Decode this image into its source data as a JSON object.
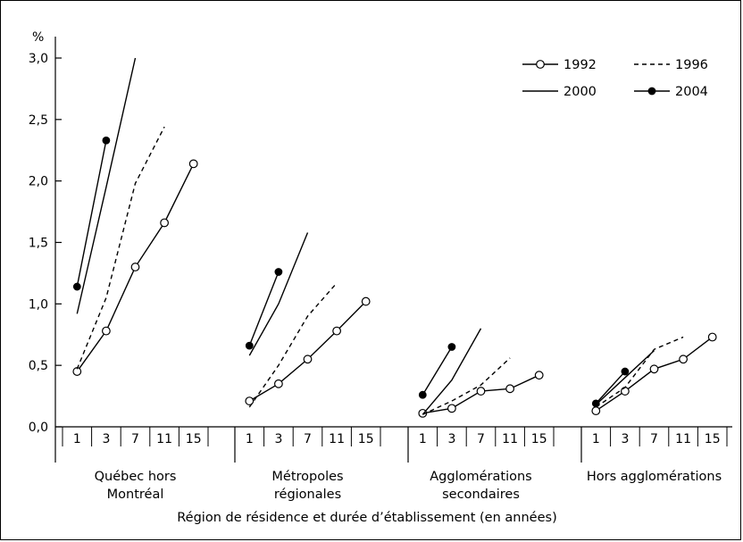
{
  "chart_data": {
    "type": "line",
    "ylabel": "%",
    "xlabel": "Région de résidence et durée d’établissement (en années)",
    "ylim": [
      0,
      3.0
    ],
    "y_ticks": [
      "0,0",
      "0,5",
      "1,0",
      "1,5",
      "2,0",
      "2,5",
      "3,0"
    ],
    "x_ticks": [
      "1",
      "3",
      "7",
      "11",
      "15"
    ],
    "groups": [
      {
        "label_lines": [
          "Québec hors",
          "Montréal"
        ]
      },
      {
        "label_lines": [
          "Métropoles",
          "régionales"
        ]
      },
      {
        "label_lines": [
          "Agglomérations",
          "secondaires"
        ]
      },
      {
        "label_lines": [
          "Hors agglomérations"
        ]
      }
    ],
    "legend_position": "top-right",
    "series": [
      {
        "name": "1992",
        "style": "solid-open-marker",
        "values": [
          [
            0.45,
            0.78,
            1.3,
            1.66,
            2.14
          ],
          [
            0.21,
            0.35,
            0.55,
            0.78,
            1.02
          ],
          [
            0.11,
            0.15,
            0.29,
            0.31,
            0.42
          ],
          [
            0.13,
            0.29,
            0.47,
            0.55,
            0.73
          ]
        ]
      },
      {
        "name": "1996",
        "style": "dashed",
        "values": [
          [
            0.47,
            1.05,
            1.98,
            2.44,
            null
          ],
          [
            0.16,
            0.5,
            0.9,
            1.17,
            null
          ],
          [
            0.1,
            0.21,
            0.34,
            0.56,
            null
          ],
          [
            0.16,
            0.32,
            0.63,
            0.73,
            null
          ]
        ]
      },
      {
        "name": "2000",
        "style": "solid",
        "values": [
          [
            0.92,
            1.95,
            3.0,
            null,
            null
          ],
          [
            0.58,
            1.0,
            1.58,
            null,
            null
          ],
          [
            0.1,
            0.38,
            0.8,
            null,
            null
          ],
          [
            0.18,
            0.4,
            0.62,
            null,
            null
          ]
        ]
      },
      {
        "name": "2004",
        "style": "solid-filled-marker",
        "values": [
          [
            1.14,
            2.33,
            null,
            null,
            null
          ],
          [
            0.66,
            1.26,
            null,
            null,
            null
          ],
          [
            0.26,
            0.65,
            null,
            null,
            null
          ],
          [
            0.19,
            0.45,
            null,
            null,
            null
          ]
        ]
      }
    ]
  }
}
